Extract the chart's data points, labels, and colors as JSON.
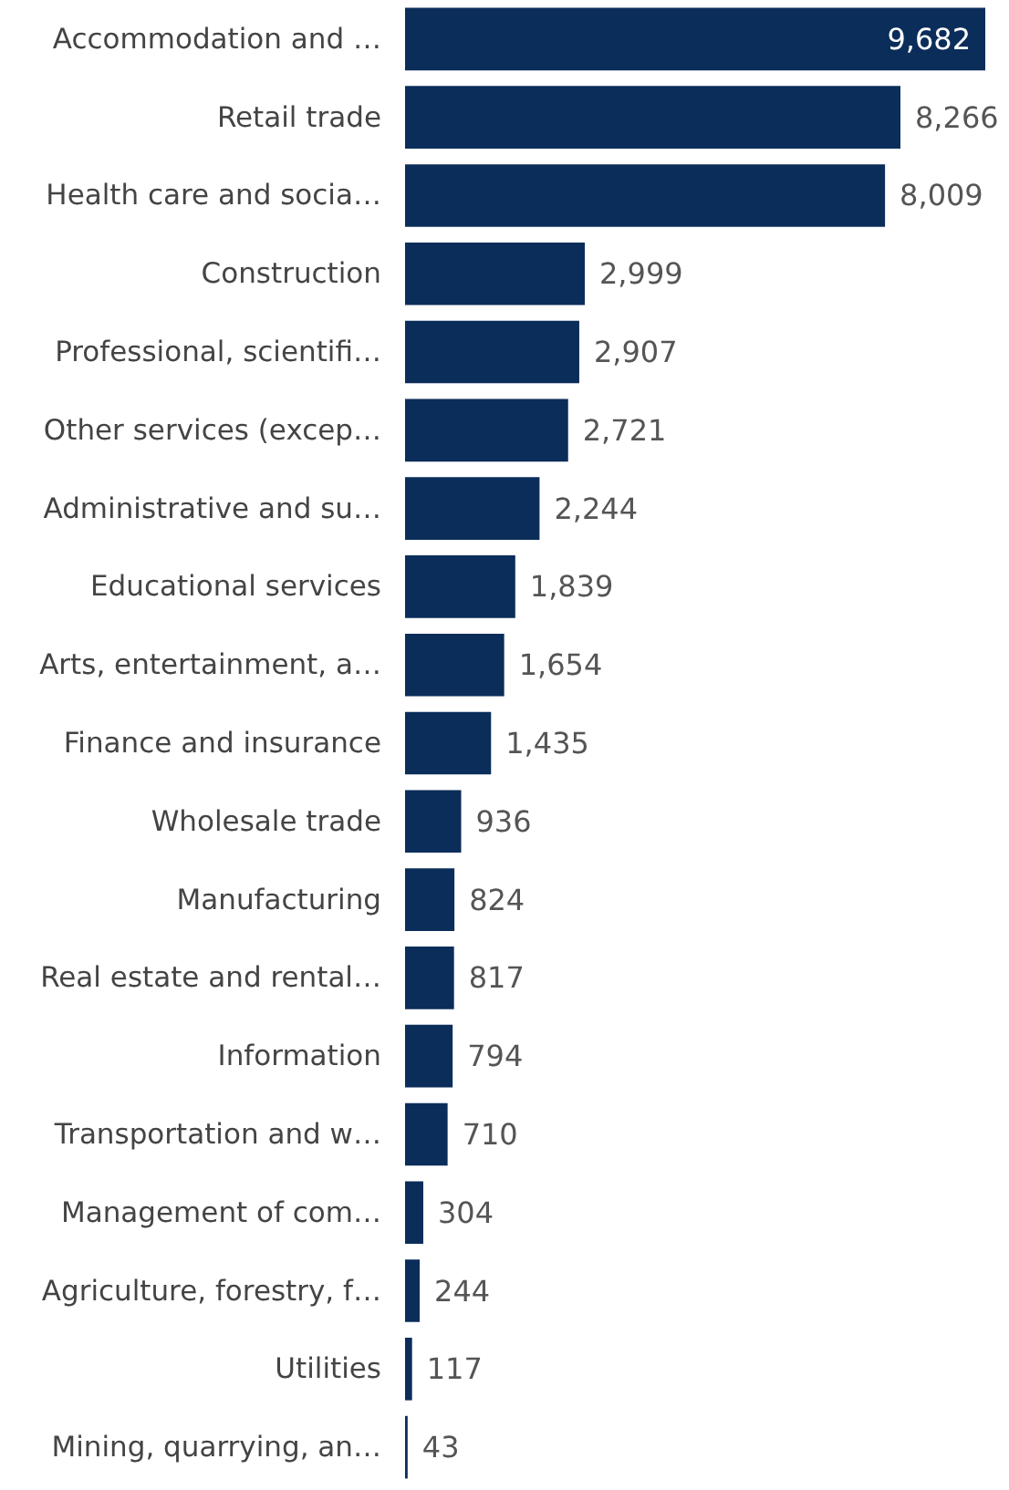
{
  "chart_data": {
    "type": "bar",
    "orientation": "horizontal",
    "color": "#0b2d5a",
    "value_labels": [
      "9,682",
      "8,266",
      "8,009",
      "2,999",
      "2,907",
      "2,721",
      "2,244",
      "1,839",
      "1,654",
      "1,435",
      "936",
      "824",
      "817",
      "794",
      "710",
      "304",
      "244",
      "117",
      "43"
    ],
    "categories": [
      "Accommodation and …",
      "Retail trade",
      "Health care and socia…",
      "Construction",
      "Professional, scientifi…",
      "Other services (excep…",
      "Administrative and su…",
      "Educational services",
      "Arts, entertainment, a…",
      "Finance and insurance",
      "Wholesale trade",
      "Manufacturing",
      "Real estate and rental…",
      "Information",
      "Transportation and w…",
      "Management of com…",
      "Agriculture, forestry, f…",
      "Utilities",
      "Mining, quarrying, an…"
    ],
    "values": [
      9682,
      8266,
      8009,
      2999,
      2907,
      2721,
      2244,
      1839,
      1654,
      1435,
      936,
      824,
      817,
      794,
      710,
      304,
      244,
      117,
      43
    ]
  }
}
